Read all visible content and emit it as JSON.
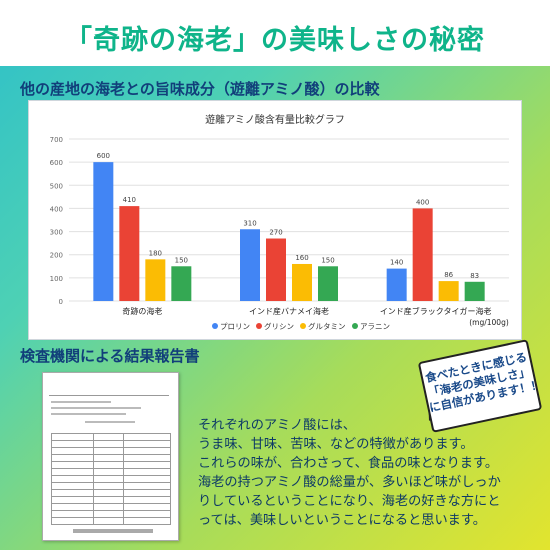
{
  "header": {
    "title": "「奇跡の海老」の美味しさの秘密"
  },
  "section1": {
    "heading": "他の産地の海老との旨味成分（遊離アミノ酸）の比較"
  },
  "chart_data": {
    "type": "bar",
    "title": "遊離アミノ酸含有量比較グラフ",
    "categories": [
      "奇跡の海老",
      "インド産バナメイ海老",
      "インド産ブラックタイガー海老"
    ],
    "unit_label": "(mg/100g)",
    "ylim": [
      0,
      700
    ],
    "yticks": [
      0,
      100,
      200,
      300,
      400,
      500,
      600,
      700
    ],
    "grid": true,
    "legend_position": "bottom",
    "series": [
      {
        "name": "プロリン",
        "color": "#4285f4",
        "values": [
          600,
          310,
          140
        ]
      },
      {
        "name": "グリシン",
        "color": "#ea4335",
        "values": [
          410,
          270,
          400
        ]
      },
      {
        "name": "グルタミン",
        "color": "#fbbc04",
        "values": [
          180,
          160,
          86
        ]
      },
      {
        "name": "アラニン",
        "color": "#34a853",
        "values": [
          150,
          150,
          83
        ]
      }
    ]
  },
  "section2": {
    "heading": "検査機関による結果報告書"
  },
  "callout": {
    "lines": [
      "食べたときに感じる",
      "「海老の美味しさ」",
      "に自信があります！！"
    ]
  },
  "body": {
    "lines": [
      "それぞれのアミノ酸には、",
      "うま味、甘味、苦味、などの特徴があります。",
      "これらの味が、合わさって、食品の味となります。",
      "海老の持つアミノ酸の総量が、多いほど味がしっか",
      "りしているということになり、海老の好きな方にと",
      "っては、美味しいということになると思います。"
    ]
  }
}
